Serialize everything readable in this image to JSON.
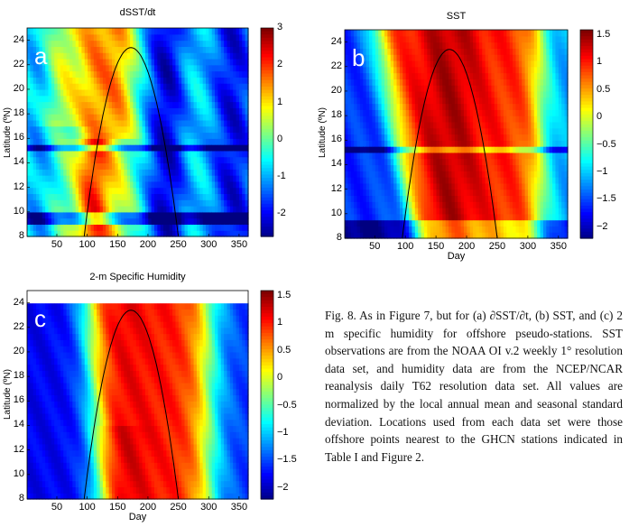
{
  "chart_data": [
    {
      "type": "heatmap",
      "id": "a",
      "title": "dSST/dt",
      "panel_letter": "a",
      "xlabel": "",
      "ylabel": "Latitude (ºN)",
      "xlim": [
        1,
        365
      ],
      "ylim": [
        8,
        25
      ],
      "xticks": [
        50,
        100,
        150,
        200,
        250,
        300,
        350
      ],
      "yticks": [
        8,
        10,
        12,
        14,
        16,
        18,
        20,
        22,
        24
      ],
      "colorbar": {
        "range": [
          -2.6,
          3.0
        ],
        "ticks": [
          3,
          2,
          1,
          0,
          -1,
          -2
        ]
      },
      "curve": {
        "x_start": 95,
        "x_peak": 172,
        "y_peak": 23.4,
        "x_end": 250,
        "y_base": 8
      }
    },
    {
      "type": "heatmap",
      "id": "b",
      "title": "SST",
      "panel_letter": "b",
      "xlabel": "Day",
      "ylabel": "Latitude (ºN)",
      "xlim": [
        1,
        365
      ],
      "ylim": [
        8,
        25
      ],
      "xticks": [
        50,
        100,
        150,
        200,
        250,
        300,
        350
      ],
      "yticks": [
        8,
        10,
        12,
        14,
        16,
        18,
        20,
        22,
        24
      ],
      "colorbar": {
        "range": [
          -2.2,
          1.6
        ],
        "ticks": [
          "1.5",
          "1",
          "0.5",
          "0",
          "−0.5",
          "−1",
          "−1.5",
          "−2"
        ]
      },
      "curve": {
        "x_start": 95,
        "x_peak": 172,
        "y_peak": 23.4,
        "x_end": 250,
        "y_base": 8
      }
    },
    {
      "type": "heatmap",
      "id": "c",
      "title": "2-m Specific Humidity",
      "panel_letter": "c",
      "xlabel": "Day",
      "ylabel": "Latitude (ºN)",
      "xlim": [
        1,
        365
      ],
      "ylim": [
        8,
        25
      ],
      "xticks": [
        50,
        100,
        150,
        200,
        250,
        300,
        350
      ],
      "yticks": [
        8,
        10,
        12,
        14,
        16,
        18,
        20,
        22,
        24
      ],
      "colorbar": {
        "range": [
          -2.2,
          1.6
        ],
        "ticks": [
          "1.5",
          "1",
          "0.5",
          "0",
          "−0.5",
          "−1",
          "−1.5",
          "−2"
        ]
      },
      "curve": {
        "x_start": 95,
        "x_peak": 172,
        "y_peak": 23.4,
        "x_end": 250,
        "y_base": 8
      }
    }
  ],
  "caption": "Fig. 8. As in Figure 7, but for (a) ∂SST/∂t, (b) SST, and (c) 2 m specific humidity for offshore pseudo-stations. SST observations are from the NOAA OI v.2 weekly 1° resolution data set, and humidity data are from the NCEP/NCAR reanalysis daily T62 resolution data set. All values are normalized by the local annual mean and seasonal standard deviation. Locations used from each data set were those offshore points nearest to the GHCN stations indicated in Table I and Figure 2."
}
